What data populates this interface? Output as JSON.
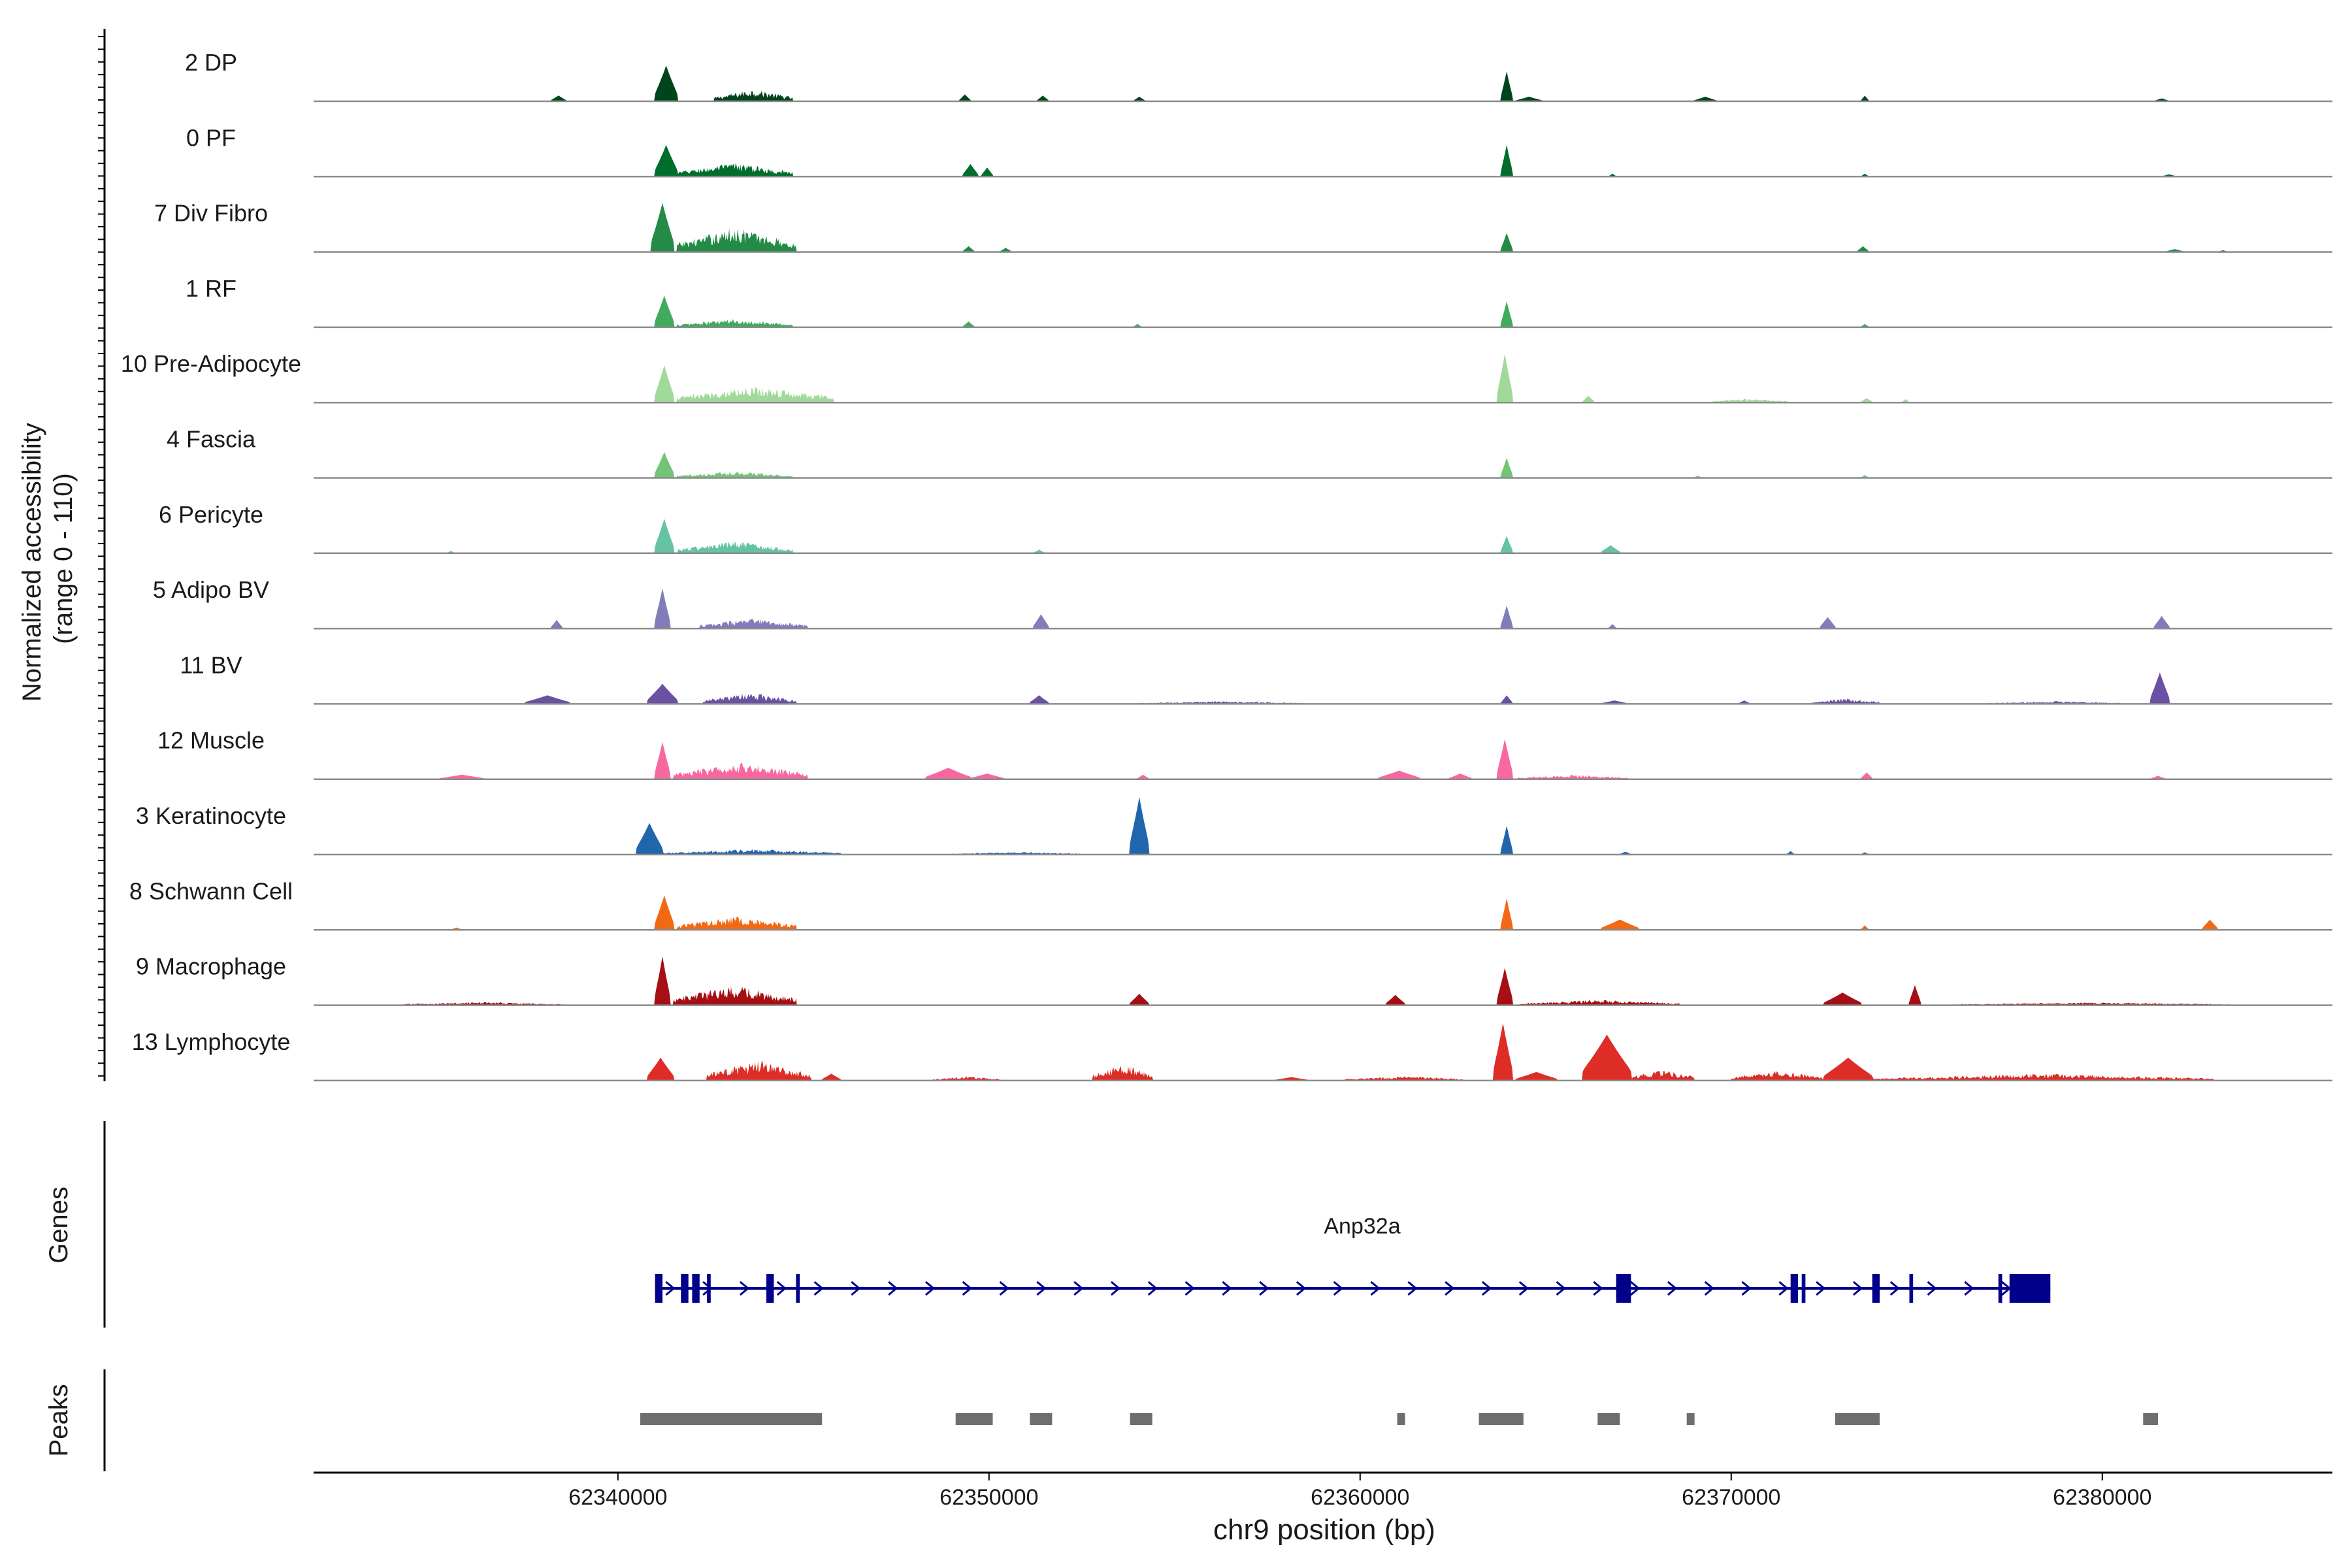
{
  "chart_data": {
    "type": "area",
    "title": "",
    "ylabel_line1": "Normalized accessibility",
    "ylabel_line2": "(range 0 - 110)",
    "yrange": [
      0,
      110
    ],
    "xlabel": "chr9 position (bp)",
    "xlim": [
      62331800,
      62386200
    ],
    "xticks": [
      62340000,
      62350000,
      62360000,
      62370000,
      62380000
    ],
    "xtick_labels": [
      "62340000",
      "62350000",
      "62360000",
      "62370000",
      "62380000"
    ],
    "tracks": [
      {
        "name": "2 DP",
        "color": "#00441b",
        "peaks": [
          [
            62341000,
            62341600,
            0.62
          ],
          [
            62342600,
            62344700,
            0.22
          ],
          [
            62338200,
            62338600,
            0.1
          ],
          [
            62349200,
            62349500,
            0.12
          ],
          [
            62351300,
            62351600,
            0.1
          ],
          [
            62353900,
            62354200,
            0.08
          ],
          [
            62363800,
            62364100,
            0.52
          ],
          [
            62364200,
            62364900,
            0.08
          ],
          [
            62369000,
            62369600,
            0.08
          ],
          [
            62373500,
            62373700,
            0.1
          ],
          [
            62381400,
            62381800,
            0.05
          ]
        ]
      },
      {
        "name": "0 PF",
        "color": "#006d2c",
        "peaks": [
          [
            62341000,
            62341600,
            0.55
          ],
          [
            62341600,
            62344700,
            0.25
          ],
          [
            62349300,
            62349700,
            0.22
          ],
          [
            62349800,
            62350100,
            0.16
          ],
          [
            62363800,
            62364100,
            0.55
          ],
          [
            62366700,
            62366900,
            0.05
          ],
          [
            62373500,
            62373700,
            0.05
          ],
          [
            62381600,
            62382000,
            0.04
          ]
        ]
      },
      {
        "name": "7 Div Fibro",
        "color": "#238b45",
        "peaks": [
          [
            62340900,
            62341500,
            0.85
          ],
          [
            62341600,
            62344800,
            0.45
          ],
          [
            62349300,
            62349600,
            0.1
          ],
          [
            62350300,
            62350600,
            0.07
          ],
          [
            62363800,
            62364100,
            0.33
          ],
          [
            62373400,
            62373700,
            0.1
          ],
          [
            62381700,
            62382200,
            0.05
          ],
          [
            62383100,
            62383400,
            0.03
          ]
        ]
      },
      {
        "name": "1 RF",
        "color": "#41ab5d",
        "peaks": [
          [
            62341000,
            62341500,
            0.55
          ],
          [
            62341600,
            62344700,
            0.15
          ],
          [
            62349300,
            62349600,
            0.1
          ],
          [
            62353900,
            62354100,
            0.06
          ],
          [
            62363800,
            62364100,
            0.45
          ],
          [
            62373500,
            62373700,
            0.06
          ]
        ]
      },
      {
        "name": "10 Pre-Adipocyte",
        "color": "#a1d99b",
        "peaks": [
          [
            62341000,
            62341500,
            0.65
          ],
          [
            62341600,
            62345800,
            0.3
          ],
          [
            62363700,
            62364100,
            0.85
          ],
          [
            62366000,
            62366300,
            0.12
          ],
          [
            62369500,
            62371500,
            0.08
          ],
          [
            62373500,
            62373800,
            0.08
          ],
          [
            62374600,
            62374800,
            0.06
          ]
        ]
      },
      {
        "name": "4 Fascia",
        "color": "#74c476",
        "peaks": [
          [
            62341000,
            62341500,
            0.45
          ],
          [
            62341600,
            62344700,
            0.12
          ],
          [
            62363800,
            62364100,
            0.35
          ],
          [
            62369000,
            62369200,
            0.04
          ],
          [
            62373500,
            62373700,
            0.05
          ]
        ]
      },
      {
        "name": "6 Pericyte",
        "color": "#66c2a4",
        "peaks": [
          [
            62341000,
            62341500,
            0.6
          ],
          [
            62341600,
            62344700,
            0.22
          ],
          [
            62363800,
            62364100,
            0.3
          ],
          [
            62366500,
            62367000,
            0.14
          ],
          [
            62351200,
            62351500,
            0.06
          ],
          [
            62335400,
            62335600,
            0.04
          ]
        ]
      },
      {
        "name": "5 Adipo BV",
        "color": "#807dba",
        "peaks": [
          [
            62341000,
            62341400,
            0.7
          ],
          [
            62342200,
            62345100,
            0.18
          ],
          [
            62338200,
            62338500,
            0.15
          ],
          [
            62351200,
            62351600,
            0.25
          ],
          [
            62363800,
            62364100,
            0.4
          ],
          [
            62366700,
            62366900,
            0.08
          ],
          [
            62372400,
            62372800,
            0.2
          ],
          [
            62381400,
            62381800,
            0.22
          ]
        ]
      },
      {
        "name": "11 BV",
        "color": "#6a51a3",
        "peaks": [
          [
            62340800,
            62341600,
            0.35
          ],
          [
            62342300,
            62344800,
            0.2
          ],
          [
            62337500,
            62338700,
            0.15
          ],
          [
            62351100,
            62351600,
            0.15
          ],
          [
            62363800,
            62364100,
            0.15
          ],
          [
            62366500,
            62367200,
            0.06
          ],
          [
            62370200,
            62370500,
            0.06
          ],
          [
            62372200,
            62374000,
            0.1
          ],
          [
            62381300,
            62381800,
            0.55
          ],
          [
            62354000,
            62358500,
            0.05
          ],
          [
            62376900,
            62380500,
            0.05
          ]
        ]
      },
      {
        "name": "12 Muscle",
        "color": "#f768a1",
        "peaks": [
          [
            62341000,
            62341400,
            0.65
          ],
          [
            62341500,
            62345100,
            0.3
          ],
          [
            62335200,
            62336400,
            0.08
          ],
          [
            62348300,
            62349500,
            0.2
          ],
          [
            62349500,
            62350400,
            0.1
          ],
          [
            62354000,
            62354300,
            0.08
          ],
          [
            62360500,
            62361600,
            0.15
          ],
          [
            62362400,
            62363000,
            0.1
          ],
          [
            62363700,
            62364100,
            0.7
          ],
          [
            62364200,
            62367200,
            0.08
          ],
          [
            62373500,
            62373800,
            0.12
          ],
          [
            62381300,
            62381700,
            0.06
          ]
        ]
      },
      {
        "name": "3 Keratinocyte",
        "color": "#2166ac",
        "peaks": [
          [
            62340500,
            62341200,
            0.55
          ],
          [
            62341200,
            62346000,
            0.1
          ],
          [
            62353800,
            62354300,
            1.0
          ],
          [
            62363800,
            62364100,
            0.5
          ],
          [
            62349000,
            62352500,
            0.05
          ],
          [
            62371500,
            62371700,
            0.06
          ],
          [
            62367000,
            62367300,
            0.05
          ],
          [
            62373500,
            62373700,
            0.04
          ]
        ]
      },
      {
        "name": "8 Schwann Cell",
        "color": "#f16913",
        "peaks": [
          [
            62341000,
            62341500,
            0.6
          ],
          [
            62341600,
            62344800,
            0.25
          ],
          [
            62363800,
            62364100,
            0.55
          ],
          [
            62366500,
            62367500,
            0.18
          ],
          [
            62373500,
            62373700,
            0.08
          ],
          [
            62382700,
            62383100,
            0.18
          ],
          [
            62335500,
            62335800,
            0.04
          ]
        ]
      },
      {
        "name": "9 Macrophage",
        "color": "#a50f15",
        "peaks": [
          [
            62341000,
            62341400,
            0.85
          ],
          [
            62341500,
            62344800,
            0.35
          ],
          [
            62353800,
            62354300,
            0.2
          ],
          [
            62360700,
            62361200,
            0.18
          ],
          [
            62363700,
            62364100,
            0.65
          ],
          [
            62364300,
            62368600,
            0.1
          ],
          [
            62372500,
            62373500,
            0.22
          ],
          [
            62374800,
            62375100,
            0.35
          ],
          [
            62334200,
            62338500,
            0.06
          ],
          [
            62376000,
            62383500,
            0.05
          ]
        ]
      },
      {
        "name": "13 Lymphocyte",
        "color": "#de2d26",
        "peaks": [
          [
            62340800,
            62341500,
            0.4
          ],
          [
            62342400,
            62345200,
            0.35
          ],
          [
            62345500,
            62346000,
            0.12
          ],
          [
            62348500,
            62350300,
            0.08
          ],
          [
            62352800,
            62354400,
            0.3
          ],
          [
            62357700,
            62358600,
            0.06
          ],
          [
            62359600,
            62362800,
            0.08
          ],
          [
            62363600,
            62364100,
            1.0
          ],
          [
            62364200,
            62365300,
            0.15
          ],
          [
            62366000,
            62367300,
            0.8
          ],
          [
            62367300,
            62369000,
            0.2
          ],
          [
            62370000,
            62372500,
            0.18
          ],
          [
            62372500,
            62373800,
            0.4
          ],
          [
            62373800,
            62383000,
            0.12
          ]
        ]
      }
    ],
    "genes_label": "Genes",
    "gene": {
      "name": "Anp32a",
      "color": "#00008b",
      "start": 62341000,
      "end": 62378600,
      "exons": [
        [
          62341000,
          62341200
        ],
        [
          62341700,
          62341900
        ],
        [
          62342000,
          62342200
        ],
        [
          62342400,
          62342500
        ],
        [
          62344000,
          62344200
        ],
        [
          62344800,
          62344900
        ],
        [
          62366900,
          62367300
        ],
        [
          62371600,
          62371800
        ],
        [
          62371900,
          62372000
        ],
        [
          62373800,
          62374000
        ],
        [
          62374800,
          62374900
        ],
        [
          62377200,
          62377300
        ],
        [
          62377500,
          62378600
        ]
      ]
    },
    "peaks_label": "Peaks",
    "peak_regions": [
      [
        62340600,
        62345500
      ],
      [
        62349100,
        62350100
      ],
      [
        62351100,
        62351700
      ],
      [
        62353800,
        62354400
      ],
      [
        62361000,
        62361200
      ],
      [
        62363200,
        62364400
      ],
      [
        62366400,
        62367000
      ],
      [
        62368800,
        62369000
      ],
      [
        62372800,
        62374000
      ],
      [
        62381100,
        62381500
      ]
    ]
  }
}
